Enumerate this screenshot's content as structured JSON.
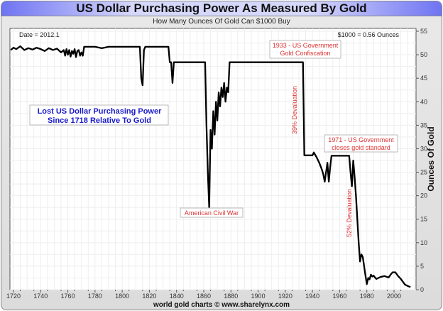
{
  "chart_data": {
    "type": "line",
    "title": "US Dollar Purchasing Power As Measured By Gold",
    "subtitle": "How Many Ounces Of Gold Can $1000 Buy",
    "ylabel": "Ounces Of Gold",
    "xlabel": "",
    "footer": "world gold charts © www.sharelynx.com",
    "date_readout": "Date = 2012.1",
    "value_readout": "$1000 = 0.56 Ounces",
    "xlim": [
      1717,
      2016
    ],
    "ylim": [
      0,
      56
    ],
    "xticks": [
      1720,
      1740,
      1760,
      1780,
      1800,
      1820,
      1840,
      1860,
      1880,
      1900,
      1920,
      1940,
      1960,
      1980,
      2000
    ],
    "yticks": [
      0,
      5,
      10,
      15,
      20,
      25,
      30,
      35,
      40,
      45,
      50,
      55
    ],
    "grid": true,
    "line_color": "#000000",
    "annotation_color": "#dd3333",
    "headline_color": "#1a1acc",
    "headline": [
      "Lost US Dollar Purchasing Power",
      "Since 1718 Relative To Gold"
    ],
    "annotations": [
      {
        "lines": [
          "1933 - US Government",
          "Gold Confiscation"
        ],
        "year": 1933
      },
      {
        "lines": [
          "American Civil War"
        ],
        "year": 1864
      },
      {
        "lines": [
          "1971 - US Government",
          "closes gold standard"
        ],
        "year": 1971
      },
      {
        "lines": [
          "39% Devaluation"
        ],
        "year": 1934,
        "rotated": true
      },
      {
        "lines": [
          "52% Devaluation"
        ],
        "year": 1972,
        "rotated": true
      }
    ],
    "x": [
      1718,
      1720,
      1722,
      1725,
      1728,
      1731,
      1734,
      1737,
      1740,
      1743,
      1746,
      1749,
      1752,
      1755,
      1757,
      1758,
      1759,
      1760,
      1761,
      1762,
      1763,
      1764,
      1765,
      1766,
      1767,
      1768,
      1769,
      1770,
      1771,
      1772,
      1775,
      1780,
      1785,
      1790,
      1795,
      1800,
      1805,
      1810,
      1813,
      1814,
      1815,
      1816,
      1817,
      1820,
      1825,
      1830,
      1834,
      1835,
      1836,
      1837,
      1838,
      1845,
      1850,
      1855,
      1861,
      1862,
      1863,
      1864,
      1865,
      1866,
      1867,
      1868,
      1869,
      1870,
      1871,
      1872,
      1873,
      1874,
      1875,
      1876,
      1877,
      1878,
      1879,
      1890,
      1900,
      1910,
      1920,
      1933,
      1934,
      1940,
      1941,
      1943,
      1945,
      1947,
      1948,
      1949,
      1950,
      1951,
      1952,
      1953,
      1954,
      1960,
      1965,
      1967,
      1968,
      1969,
      1970,
      1971,
      1972,
      1973,
      1974,
      1975,
      1976,
      1977,
      1978,
      1979,
      1980,
      1981,
      1982,
      1983,
      1984,
      1985,
      1986,
      1987,
      1990,
      1993,
      1996,
      1998,
      1999,
      2001,
      2003,
      2005,
      2008,
      2010,
      2012.1
    ],
    "y": [
      51,
      51.5,
      51.2,
      51.8,
      51.0,
      51.4,
      51.1,
      51.5,
      51.2,
      50.8,
      51.4,
      51.0,
      51.3,
      50.5,
      51.0,
      49.8,
      51.2,
      50.0,
      51.0,
      49.6,
      50.8,
      50.2,
      51.2,
      49.5,
      50.8,
      51.0,
      49.8,
      50.5,
      49.8,
      51.7,
      51.7,
      51.7,
      51.4,
      51.7,
      51.7,
      51.7,
      51.7,
      51.7,
      51.7,
      45,
      43.5,
      51,
      51.7,
      51.7,
      51.7,
      51.7,
      51.7,
      48.4,
      48.4,
      44,
      48.4,
      48.4,
      48.4,
      48.4,
      48.4,
      35,
      25,
      17.5,
      34,
      30,
      38,
      33,
      40,
      36,
      42,
      39,
      43,
      41,
      44,
      40,
      43,
      42,
      48.4,
      48.4,
      48.4,
      48.4,
      48.4,
      48.4,
      28.6,
      28.6,
      29.2,
      28.2,
      27,
      25.5,
      24.5,
      23,
      25,
      27,
      23,
      26,
      28.5,
      28.5,
      28.5,
      28.5,
      25,
      22,
      27.5,
      24,
      20,
      15,
      10,
      6,
      7.5,
      7,
      5,
      3,
      1.2,
      2.5,
      2.2,
      3.2,
      2.8,
      3.0,
      2.6,
      2.3,
      2.7,
      2.9,
      2.6,
      3.4,
      3.7,
      3.7,
      2.9,
      2.3,
      1.1,
      0.8,
      0.56
    ]
  }
}
